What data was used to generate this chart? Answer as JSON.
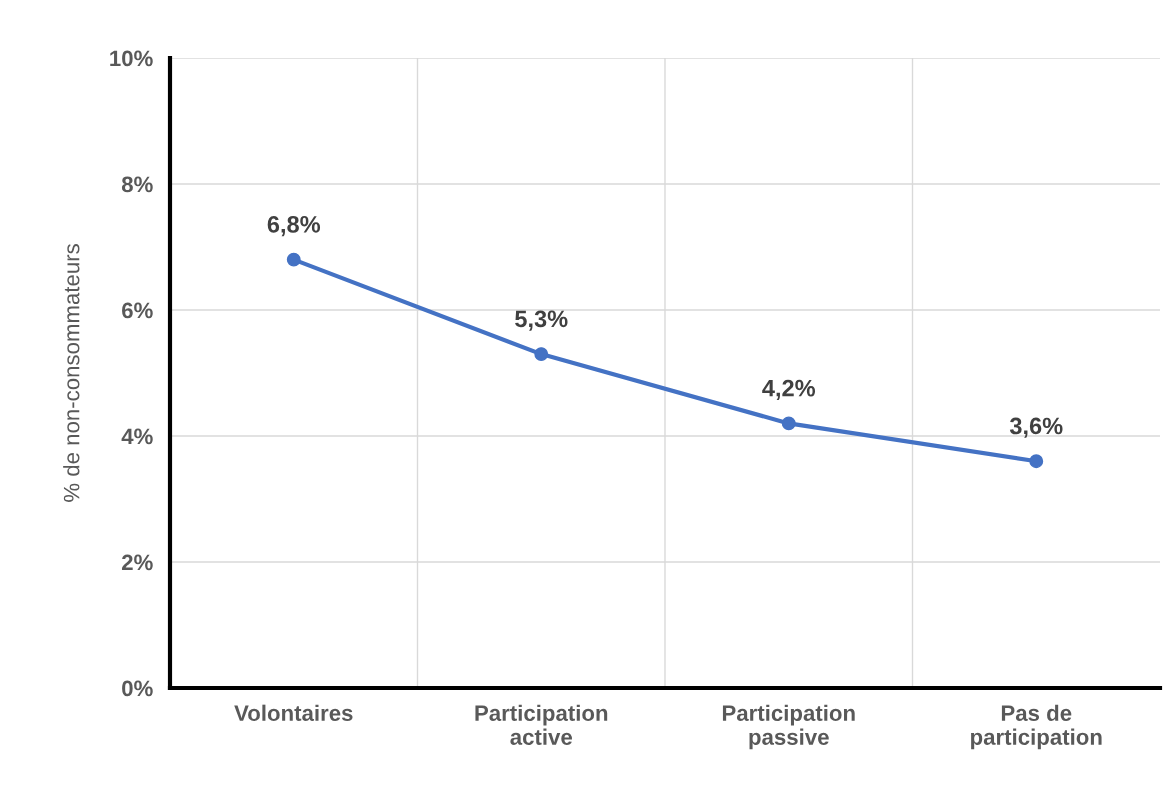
{
  "chart_data": {
    "type": "line",
    "ylabel": "% de non-consommateurs",
    "categories": [
      "Volontaires",
      "Participation\nactive",
      "Participation\npassive",
      "Pas de\nparticipation"
    ],
    "values": [
      6.8,
      5.3,
      4.2,
      3.6
    ],
    "value_labels": [
      "6,8%",
      "5,3%",
      "4,2%",
      "3,6%"
    ],
    "color": "#4472c4",
    "marker": "circle",
    "line_style": "solid",
    "ylim": [
      0,
      10
    ],
    "yticks": [
      {
        "value": 0,
        "label": "0%"
      },
      {
        "value": 2,
        "label": "2%"
      },
      {
        "value": 4,
        "label": "4%"
      },
      {
        "value": 6,
        "label": "6%"
      },
      {
        "value": 8,
        "label": "8%"
      },
      {
        "value": 10,
        "label": "10%"
      }
    ],
    "grid": true
  }
}
